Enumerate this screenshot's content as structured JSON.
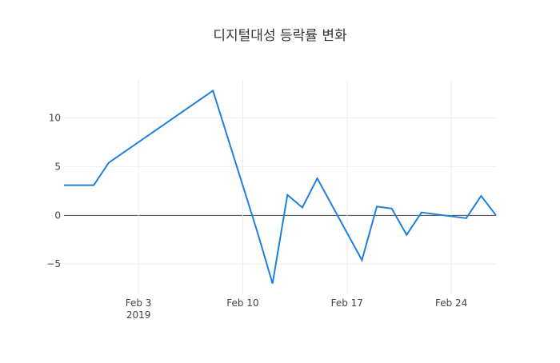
{
  "chart_data": {
    "type": "line",
    "title": "디지털대성 등락률 변화",
    "x": [
      "2019-01-29",
      "2019-01-31",
      "2019-02-01",
      "2019-02-08",
      "2019-02-11",
      "2019-02-12",
      "2019-02-13",
      "2019-02-14",
      "2019-02-15",
      "2019-02-18",
      "2019-02-19",
      "2019-02-20",
      "2019-02-21",
      "2019-02-22",
      "2019-02-25",
      "2019-02-26",
      "2019-02-27"
    ],
    "series": [
      {
        "color": "#1f7fe0",
        "values": [
          3.1,
          3.1,
          5.4,
          12.8,
          -1.8,
          -7.0,
          2.1,
          0.8,
          3.8,
          -4.6,
          0.9,
          0.7,
          -2.0,
          0.3,
          -0.3,
          2.0,
          0.0
        ]
      }
    ],
    "xlim": [
      "2019-01-29",
      "2019-02-27"
    ],
    "xticks": [
      {
        "value": "2019-02-03",
        "label": "Feb 3\n2019"
      },
      {
        "value": "2019-02-10",
        "label": "Feb 10"
      },
      {
        "value": "2019-02-17",
        "label": "Feb 17"
      },
      {
        "value": "2019-02-24",
        "label": "Feb 24"
      }
    ],
    "ylim": [
      -8.1,
      13.9
    ],
    "yticks": [
      {
        "value": -5,
        "label": "−5"
      },
      0,
      5,
      10
    ],
    "grid": true,
    "zeroline": true
  }
}
